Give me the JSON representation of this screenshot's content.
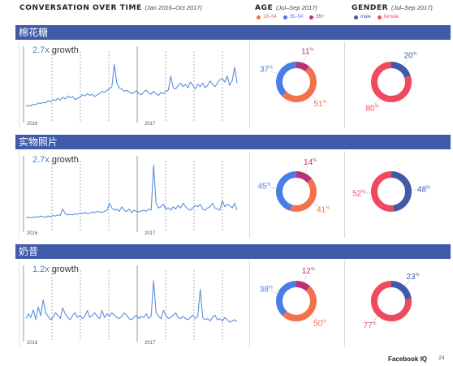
{
  "header": {
    "conversation_title": "CONVERSATION OVER TIME",
    "conversation_range": "(Jan 2016–Oct 2017)",
    "age_title": "AGE",
    "age_range": "(Jul–Sep 2017)",
    "gender_title": "GENDER",
    "gender_range": "(Jul–Sep 2017)"
  },
  "legend_age": [
    {
      "label": "18–34",
      "color": "#f3714b"
    },
    {
      "label": "35–54",
      "color": "#4a7ee6"
    },
    {
      "label": "55+",
      "color": "#b8327a"
    }
  ],
  "legend_gender": [
    {
      "label": "male",
      "color": "#3e5aa8"
    },
    {
      "label": "female",
      "color": "#ee4a5f"
    }
  ],
  "colors": {
    "band": "#3f5ba9",
    "line": "#5b8ee0",
    "age_18_34": "#f3714b",
    "age_35_54": "#4a7ee6",
    "age_55": "#b8327a",
    "male": "#3e5aa8",
    "female": "#ee4a5f"
  },
  "footer": {
    "brand": "Facebook IQ",
    "page": "24"
  },
  "sections": [
    {
      "name": "棉花糖",
      "growth": "2.7x",
      "growth_word": "growth",
      "year_labels": [
        "2016",
        "2017"
      ],
      "chart_data": {
        "type": "line",
        "series": [
          {
            "values": [
              8,
              10,
              9,
              12,
              11,
              14,
              13,
              15,
              14,
              18,
              16,
              20,
              18,
              22,
              19,
              24,
              21,
              26,
              23,
              25,
              20,
              22,
              24,
              28,
              26,
              30,
              27,
              29,
              25,
              28,
              30,
              34,
              32,
              36,
              38,
              42,
              80,
              48,
              40,
              38,
              34,
              36,
              33,
              30,
              32,
              35,
              30,
              28,
              33,
              36,
              31,
              29,
              34,
              30,
              27,
              32,
              30,
              34,
              36,
              60,
              40,
              38,
              44,
              48,
              42,
              46,
              40,
              50,
              44,
              38,
              46,
              42,
              48,
              40,
              44,
              52,
              46,
              42,
              48,
              54,
              56,
              50,
              60,
              44,
              52,
              75,
              48
            ]
          }
        ]
      },
      "age": {
        "type": "pie",
        "labels": [
          "55+",
          "18–34",
          "35–54"
        ],
        "values": [
          11,
          51,
          37
        ],
        "value_labels": [
          "11",
          "51",
          "37"
        ]
      },
      "gender": {
        "type": "pie",
        "labels": [
          "male",
          "female"
        ],
        "values": [
          20,
          80
        ],
        "value_labels": [
          "20",
          "80"
        ]
      }
    },
    {
      "name": "实物照片",
      "growth": "2.7x",
      "growth_word": "growth",
      "year_labels": [
        "2016",
        "2017"
      ],
      "chart_data": {
        "type": "line",
        "series": [
          {
            "values": [
              5,
              6,
              5,
              6,
              7,
              6,
              8,
              7,
              6,
              8,
              7,
              9,
              8,
              10,
              9,
              20,
              12,
              10,
              11,
              10,
              12,
              11,
              13,
              12,
              14,
              12,
              13,
              15,
              14,
              16,
              15,
              14,
              16,
              18,
              30,
              22,
              18,
              20,
              16,
              24,
              18,
              16,
              20,
              14,
              18,
              16,
              15,
              17,
              18,
              16,
              20,
              18,
              95,
              30,
              22,
              24,
              28,
              20,
              22,
              18,
              24,
              20,
              26,
              22,
              30,
              24,
              20,
              18,
              22,
              26,
              24,
              28,
              20,
              18,
              22,
              24,
              30,
              22,
              20,
              18,
              34,
              24,
              28,
              26,
              22,
              30,
              18
            ]
          }
        ]
      },
      "age": {
        "type": "pie",
        "labels": [
          "55+",
          "18–34",
          "35–54"
        ],
        "values": [
          14,
          41,
          45
        ],
        "value_labels": [
          "14",
          "41",
          "45"
        ]
      },
      "gender": {
        "type": "pie",
        "labels": [
          "male",
          "female"
        ],
        "values": [
          48,
          52
        ],
        "value_labels": [
          "48",
          "52"
        ]
      }
    },
    {
      "name": "奶昔",
      "growth": "1.2x",
      "growth_word": "growth",
      "year_labels": [
        "2016",
        "2017"
      ],
      "chart_data": {
        "type": "line",
        "series": [
          {
            "values": [
              20,
              28,
              22,
              35,
              18,
              40,
              25,
              52,
              30,
              24,
              18,
              22,
              30,
              26,
              20,
              38,
              28,
              22,
              18,
              25,
              30,
              22,
              26,
              20,
              24,
              34,
              22,
              26,
              30,
              24,
              20,
              34,
              22,
              28,
              24,
              30,
              26,
              22,
              20,
              24,
              30,
              26,
              20,
              18,
              22,
              26,
              20,
              24,
              22,
              28,
              20,
              24,
              85,
              30,
              24,
              20,
              34,
              26,
              20,
              22,
              26,
              30,
              22,
              20,
              24,
              20,
              18,
              22,
              26,
              20,
              24,
              70,
              22,
              18,
              20,
              16,
              22,
              26,
              18,
              20,
              16,
              22,
              18,
              14,
              16,
              18,
              15
            ]
          }
        ]
      },
      "age": {
        "type": "pie",
        "labels": [
          "55+",
          "18–34",
          "35–54"
        ],
        "values": [
          12,
          50,
          38
        ],
        "value_labels": [
          "12",
          "50",
          "38"
        ]
      },
      "gender": {
        "type": "pie",
        "labels": [
          "male",
          "female"
        ],
        "values": [
          23,
          77
        ],
        "value_labels": [
          "23",
          "77"
        ]
      }
    }
  ]
}
